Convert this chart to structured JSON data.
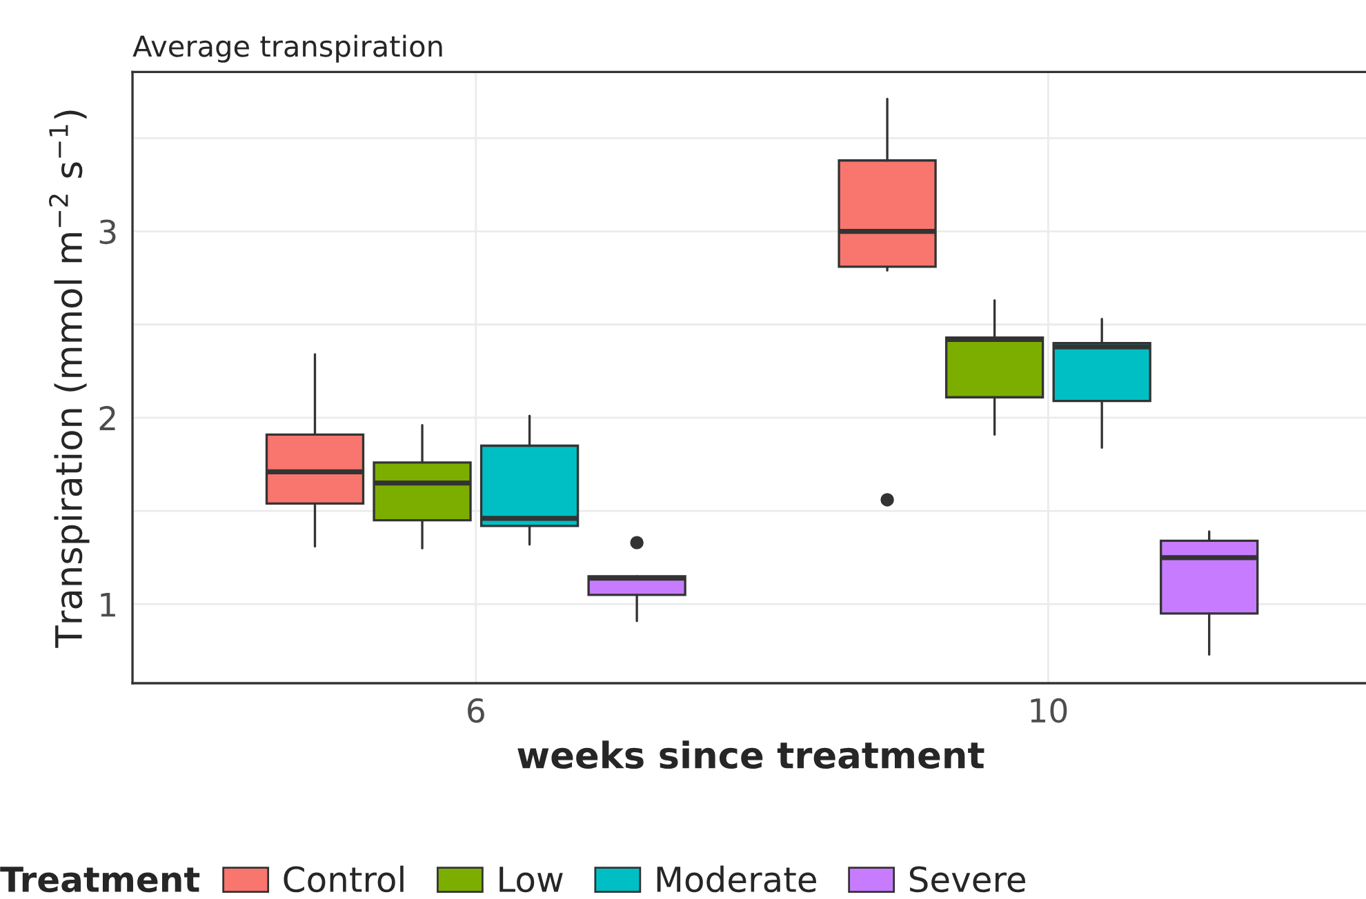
{
  "chart_data": {
    "type": "box",
    "title": "Average transpiration",
    "xlabel": "weeks since treatment",
    "ylabel": "Transpiration (mmol m$^{−2}$ s$^{−1}$)",
    "legend_title": "Treatment",
    "categories": [
      "6",
      "10"
    ],
    "series": [
      {
        "name": "Control",
        "color": "#f8766d",
        "boxes": [
          {
            "low": 1.31,
            "q1": 1.54,
            "median": 1.71,
            "q3": 1.91,
            "high": 2.34
          },
          {
            "low": 2.79,
            "q1": 2.81,
            "median": 3.0,
            "q3": 3.38,
            "high": 3.71,
            "outliers": [
              1.56
            ]
          }
        ]
      },
      {
        "name": "Low",
        "color": "#7cae00",
        "boxes": [
          {
            "low": 1.3,
            "q1": 1.45,
            "median": 1.65,
            "q3": 1.76,
            "high": 1.96
          },
          {
            "low": 1.91,
            "q1": 2.11,
            "median": 2.42,
            "q3": 2.43,
            "high": 2.63
          }
        ]
      },
      {
        "name": "Moderate",
        "color": "#00bfc4",
        "boxes": [
          {
            "low": 1.32,
            "q1": 1.42,
            "median": 1.46,
            "q3": 1.85,
            "high": 2.01
          },
          {
            "low": 1.84,
            "q1": 2.09,
            "median": 2.38,
            "q3": 2.4,
            "high": 2.53
          }
        ]
      },
      {
        "name": "Severe",
        "color": "#c77cff",
        "boxes": [
          {
            "low": 0.91,
            "q1": 1.05,
            "median": 1.14,
            "q3": 1.15,
            "high": 1.15,
            "outliers": [
              1.33
            ]
          },
          {
            "low": 0.73,
            "q1": 0.95,
            "median": 1.25,
            "q3": 1.34,
            "high": 1.39
          }
        ]
      }
    ],
    "ylim": [
      0.576,
      3.855
    ],
    "yticks": [
      1,
      {
        "value": 1.5,
        "label": null
      },
      2,
      {
        "value": 2.5,
        "label": null
      },
      3,
      {
        "value": 3.5,
        "label": null
      }
    ],
    "grid": true,
    "legend": "bottom"
  }
}
